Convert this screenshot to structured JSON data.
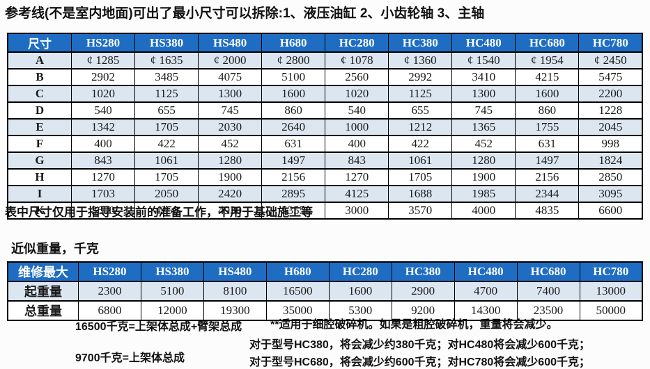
{
  "page": {
    "title": "参考线(不是室内地面)可出了最小尺寸可以拆除:1、液压油缸 2、小齿轮轴 3、主轴",
    "note_below_dimension_table": "表中尺寸仅用于指导安装前的准备工作，不用于基础施工等",
    "weights_section_title": "近似重量，千克"
  },
  "colors": {
    "header_bg": "#1e6dc3",
    "row_alt_bg": "#dce6f1",
    "border": "#000000"
  },
  "dimension_table": {
    "header": [
      "尺寸",
      "HS280",
      "HS380",
      "HS480",
      "H680",
      "HC280",
      "HC380",
      "HC480",
      "HC680",
      "HC780"
    ],
    "rows": [
      {
        "label": "A",
        "values": [
          "¢ 1285",
          "¢ 1635",
          "¢ 2000",
          "¢ 2800",
          "¢ 1078",
          "¢ 1360",
          "¢ 1540",
          "¢ 1954",
          "¢ 2450"
        ]
      },
      {
        "label": "B",
        "values": [
          "2902",
          "3485",
          "4075",
          "5100",
          "2560",
          "2992",
          "3410",
          "4215",
          "5475"
        ]
      },
      {
        "label": "C",
        "values": [
          "1020",
          "1125",
          "1300",
          "1600",
          "1020",
          "1125",
          "1300",
          "1600",
          "2200"
        ]
      },
      {
        "label": "D",
        "values": [
          "540",
          "655",
          "745",
          "860",
          "540",
          "655",
          "745",
          "860",
          "1228"
        ]
      },
      {
        "label": "E",
        "values": [
          "1342",
          "1705",
          "2030",
          "2640",
          "1000",
          "1212",
          "1365",
          "1755",
          "2045"
        ]
      },
      {
        "label": "F",
        "values": [
          "400",
          "422",
          "452",
          "631",
          "400",
          "422",
          "452",
          "631",
          "998"
        ]
      },
      {
        "label": "G",
        "values": [
          "843",
          "1061",
          "1280",
          "1497",
          "843",
          "1061",
          "1280",
          "1497",
          "1824"
        ]
      },
      {
        "label": "H",
        "values": [
          "1270",
          "1705",
          "1900",
          "2156",
          "1270",
          "1705",
          "1900",
          "2156",
          "2850"
        ]
      },
      {
        "label": "I",
        "values": [
          "1703",
          "2050",
          "2420",
          "2895",
          "4125",
          "1688",
          "1985",
          "2344",
          "3095"
        ]
      },
      {
        "label": "K",
        "values": [
          "3600",
          "4250",
          "4930",
          "5355",
          "3000",
          "3570",
          "4000",
          "4835",
          "6600"
        ]
      }
    ]
  },
  "weight_table": {
    "header": [
      "维修最大",
      "HS280",
      "HS380",
      "HS480",
      "H680",
      "HC280",
      "HC380",
      "HC480",
      "HC680",
      "HC780"
    ],
    "rows": [
      {
        "label": "起重量",
        "values": [
          "2300",
          "5100",
          "8100",
          "16500",
          "1600",
          "2900",
          "4700",
          "7400",
          "13000"
        ]
      },
      {
        "label": "总重量",
        "values": [
          "6800",
          "12000",
          "19300",
          "35000",
          "5300",
          "9200",
          "14300",
          "23500",
          "50000"
        ]
      }
    ]
  },
  "footnotes": {
    "left": [
      "16500千克=上架体总成+臂架总成",
      "9700千克=上架体总成"
    ],
    "right": [
      "**适用于细腔破碎机。如果是粗腔破碎机，重量将会减少。",
      "对于型号HC380，将会减少约380千克；对HC480将会减少600千克；",
      "对于型号HC680，将会减少约600千克；对HC780将会减少600千克；"
    ]
  }
}
